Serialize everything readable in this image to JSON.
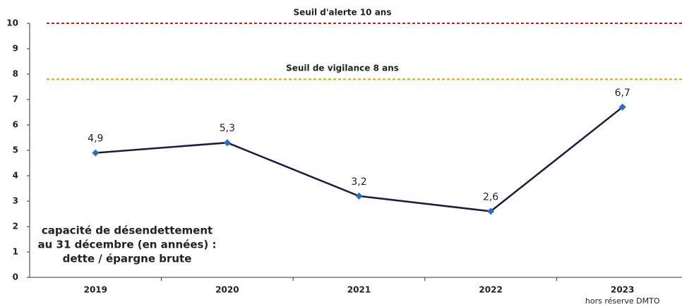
{
  "chart_data": {
    "type": "line",
    "categories": [
      "2019",
      "2020",
      "2021",
      "2022",
      "2023"
    ],
    "category_notes": [
      null,
      null,
      null,
      null,
      "hors réserve DMTO"
    ],
    "series": [
      {
        "name": "capacité de désendettement",
        "color": "#1c1c3c",
        "marker_color": "#2a6fc0",
        "values": [
          4.9,
          5.3,
          3.2,
          2.6,
          6.7
        ],
        "value_labels": [
          "4,9",
          "5,3",
          "3,2",
          "2,6",
          "6,7"
        ]
      }
    ],
    "ylim": [
      0,
      10
    ],
    "yticks": [
      0,
      1,
      2,
      3,
      4,
      5,
      6,
      7,
      8,
      9,
      10
    ],
    "thresholds": [
      {
        "label": "Seuil d'alerte 10 ans",
        "value": 10,
        "color": "#c0201a"
      },
      {
        "label": "Seuil de vigilance 8 ans",
        "value": 7.8,
        "color": "#e0a800"
      }
    ],
    "annotation": [
      "capacité de désendettement",
      "au 31 décembre (en années) :",
      "dette / épargne brute"
    ]
  }
}
